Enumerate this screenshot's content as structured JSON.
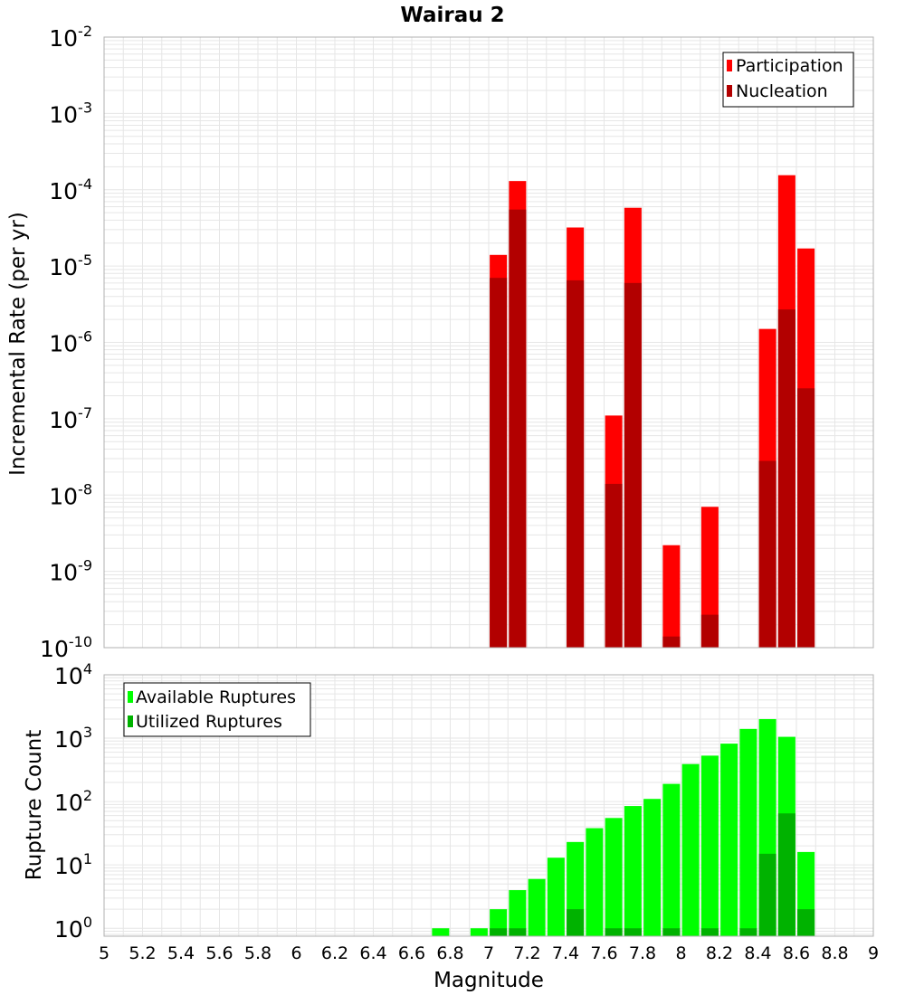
{
  "title": "Wairau 2",
  "xlabel": "Magnitude",
  "x_ticks": [
    "5",
    "5.2",
    "5.4",
    "5.6",
    "5.8",
    "6",
    "6.2",
    "6.4",
    "6.6",
    "6.8",
    "7",
    "7.2",
    "7.4",
    "7.6",
    "7.8",
    "8",
    "8.2",
    "8.4",
    "8.6",
    "8.8",
    "9"
  ],
  "colors": {
    "participation": "#ff0000",
    "nucleation": "#b20000",
    "available": "#00ff00",
    "utilized": "#00b200",
    "grid": "#e6e6e6",
    "frame": "#b0b0b0"
  },
  "chart_data": [
    {
      "type": "bar",
      "title": "Wairau 2",
      "xlabel": "Magnitude",
      "ylabel": "Incremental Rate (per yr)",
      "yscale": "log",
      "xlim": [
        5,
        9
      ],
      "ylim": [
        1e-10,
        0.01
      ],
      "y_ticks": [
        {
          "base": "10",
          "exp": "-2"
        },
        {
          "base": "10",
          "exp": "-3"
        },
        {
          "base": "10",
          "exp": "-4"
        },
        {
          "base": "10",
          "exp": "-5"
        },
        {
          "base": "10",
          "exp": "-6"
        },
        {
          "base": "10",
          "exp": "-7"
        },
        {
          "base": "10",
          "exp": "-8"
        },
        {
          "base": "10",
          "exp": "-9"
        },
        {
          "base": "10",
          "exp": "-10"
        }
      ],
      "legend_position": "top-right",
      "x": [
        7.05,
        7.15,
        7.45,
        7.65,
        7.75,
        7.95,
        8.15,
        8.45,
        8.55,
        8.65
      ],
      "series": [
        {
          "name": "Participation",
          "values": [
            1.4e-05,
            0.00013,
            3.2e-05,
            1.1e-07,
            5.8e-05,
            2.2e-09,
            7e-09,
            1.5e-06,
            0.000155,
            1.7e-05
          ]
        },
        {
          "name": "Nucleation",
          "values": [
            7e-06,
            5.5e-05,
            6.5e-06,
            1.4e-08,
            6e-06,
            1.4e-10,
            2.7e-10,
            2.8e-08,
            2.7e-06,
            2.5e-07
          ]
        }
      ]
    },
    {
      "type": "bar",
      "xlabel": "Magnitude",
      "ylabel": "Rupture Count",
      "yscale": "log",
      "xlim": [
        5,
        9
      ],
      "ylim": [
        0.75,
        10000
      ],
      "y_ticks": [
        {
          "base": "10",
          "exp": "4"
        },
        {
          "base": "10",
          "exp": "3"
        },
        {
          "base": "10",
          "exp": "2"
        },
        {
          "base": "10",
          "exp": "1"
        },
        {
          "base": "10",
          "exp": "0"
        }
      ],
      "legend_position": "top-left",
      "x": [
        6.75,
        6.95,
        7.05,
        7.15,
        7.25,
        7.35,
        7.45,
        7.55,
        7.65,
        7.75,
        7.85,
        7.95,
        8.05,
        8.15,
        8.25,
        8.35,
        8.45,
        8.55,
        8.65
      ],
      "series": [
        {
          "name": "Available Ruptures",
          "values": [
            1,
            1,
            2,
            4,
            6,
            13,
            23,
            38,
            55,
            85,
            110,
            190,
            390,
            530,
            820,
            1400,
            2000,
            1050,
            16
          ]
        },
        {
          "name": "Utilized Ruptures",
          "values": [
            0,
            0,
            1,
            1,
            0,
            0,
            2,
            0,
            1,
            1,
            0,
            1,
            0,
            1,
            0,
            1,
            15,
            65,
            2
          ]
        }
      ]
    }
  ]
}
